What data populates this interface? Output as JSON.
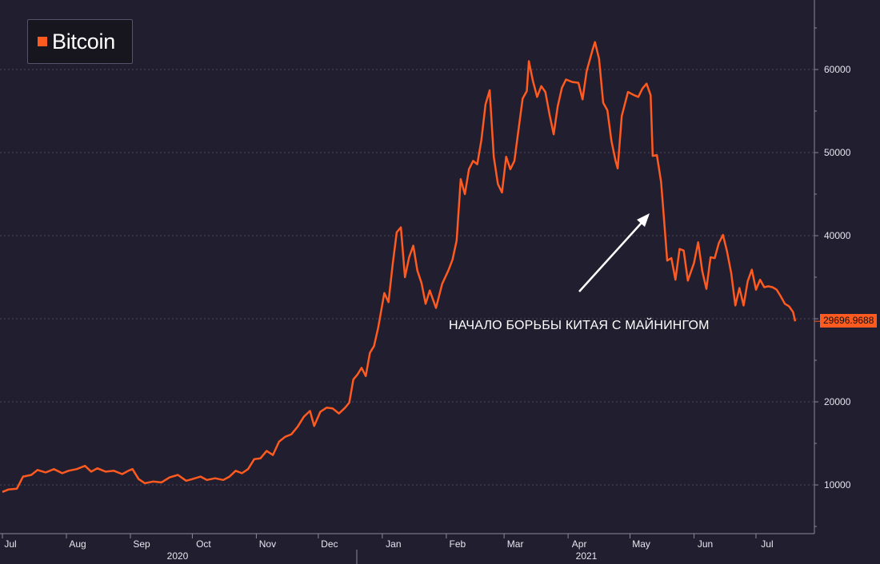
{
  "chart_data": {
    "type": "line",
    "legend": "Bitcoin",
    "series_color": "#ff5a1f",
    "background": "#201e2f",
    "grid": true,
    "legend_position": "top-left",
    "ylim": [
      3000,
      68000
    ],
    "y_ticks": [
      10000,
      20000,
      30000,
      40000,
      50000,
      60000
    ],
    "y_tick_labels": [
      "10000",
      "20000",
      "30000",
      "40000",
      "50000",
      "60000"
    ],
    "month_labels": [
      "Jul",
      "Aug",
      "Sep",
      "Oct",
      "Nov",
      "Dec",
      "Jan",
      "Feb",
      "Mar",
      "Apr",
      "May",
      "Jun",
      "Jul"
    ],
    "year_labels": [
      "2020",
      "2021"
    ],
    "last_value_label": "29696.9688",
    "annotation": "НАЧАЛО БОРЬБЫ КИТАЯ С МАЙНИНГОМ",
    "x_start": "2020-07-01",
    "x_end": "2021-07-20",
    "points": [
      [
        "2020-07-01",
        9150
      ],
      [
        "2020-07-04",
        9450
      ],
      [
        "2020-07-08",
        9550
      ],
      [
        "2020-07-11",
        11000
      ],
      [
        "2020-07-15",
        11200
      ],
      [
        "2020-07-18",
        11800
      ],
      [
        "2020-07-22",
        11500
      ],
      [
        "2020-07-26",
        11900
      ],
      [
        "2020-07-30",
        11400
      ],
      [
        "2020-08-02",
        11700
      ],
      [
        "2020-08-06",
        11900
      ],
      [
        "2020-08-10",
        12300
      ],
      [
        "2020-08-13",
        11600
      ],
      [
        "2020-08-16",
        12000
      ],
      [
        "2020-08-20",
        11600
      ],
      [
        "2020-08-24",
        11700
      ],
      [
        "2020-08-28",
        11300
      ],
      [
        "2020-08-31",
        11700
      ],
      [
        "2020-09-02",
        11900
      ],
      [
        "2020-09-05",
        10700
      ],
      [
        "2020-09-08",
        10200
      ],
      [
        "2020-09-12",
        10400
      ],
      [
        "2020-09-16",
        10300
      ],
      [
        "2020-09-20",
        10900
      ],
      [
        "2020-09-24",
        11200
      ],
      [
        "2020-09-28",
        10500
      ],
      [
        "2020-10-01",
        10700
      ],
      [
        "2020-10-05",
        11000
      ],
      [
        "2020-10-08",
        10600
      ],
      [
        "2020-10-12",
        10800
      ],
      [
        "2020-10-16",
        10600
      ],
      [
        "2020-10-19",
        11000
      ],
      [
        "2020-10-22",
        11700
      ],
      [
        "2020-10-25",
        11400
      ],
      [
        "2020-10-28",
        11900
      ],
      [
        "2020-10-31",
        13100
      ],
      [
        "2020-11-03",
        13200
      ],
      [
        "2020-11-06",
        14100
      ],
      [
        "2020-11-09",
        13600
      ],
      [
        "2020-11-12",
        15200
      ],
      [
        "2020-11-15",
        15800
      ],
      [
        "2020-11-18",
        16100
      ],
      [
        "2020-11-21",
        17000
      ],
      [
        "2020-11-24",
        18200
      ],
      [
        "2020-11-27",
        18900
      ],
      [
        "2020-11-29",
        17100
      ],
      [
        "2020-12-02",
        18800
      ],
      [
        "2020-12-05",
        19300
      ],
      [
        "2020-12-08",
        19200
      ],
      [
        "2020-12-11",
        18600
      ],
      [
        "2020-12-14",
        19300
      ],
      [
        "2020-12-16",
        19900
      ],
      [
        "2020-12-18",
        22700
      ],
      [
        "2020-12-20",
        23300
      ],
      [
        "2020-12-22",
        24100
      ],
      [
        "2020-12-24",
        23100
      ],
      [
        "2020-12-26",
        25900
      ],
      [
        "2020-12-28",
        26700
      ],
      [
        "2020-12-30",
        28900
      ],
      [
        "2021-01-02",
        33100
      ],
      [
        "2021-01-04",
        32000
      ],
      [
        "2021-01-06",
        36500
      ],
      [
        "2021-01-08",
        40400
      ],
      [
        "2021-01-10",
        41000
      ],
      [
        "2021-01-12",
        35000
      ],
      [
        "2021-01-14",
        37400
      ],
      [
        "2021-01-16",
        38800
      ],
      [
        "2021-01-18",
        35800
      ],
      [
        "2021-01-20",
        34300
      ],
      [
        "2021-01-22",
        31800
      ],
      [
        "2021-01-24",
        33400
      ],
      [
        "2021-01-27",
        31300
      ],
      [
        "2021-01-30",
        34200
      ],
      [
        "2021-02-02",
        35800
      ],
      [
        "2021-02-04",
        37100
      ],
      [
        "2021-02-06",
        39400
      ],
      [
        "2021-02-08",
        46800
      ],
      [
        "2021-02-10",
        45000
      ],
      [
        "2021-02-12",
        48000
      ],
      [
        "2021-02-14",
        49000
      ],
      [
        "2021-02-16",
        48600
      ],
      [
        "2021-02-18",
        51500
      ],
      [
        "2021-02-20",
        55800
      ],
      [
        "2021-02-22",
        57500
      ],
      [
        "2021-02-24",
        49500
      ],
      [
        "2021-02-26",
        46200
      ],
      [
        "2021-02-28",
        45200
      ],
      [
        "2021-03-02",
        49500
      ],
      [
        "2021-03-04",
        48000
      ],
      [
        "2021-03-06",
        49000
      ],
      [
        "2021-03-08",
        52800
      ],
      [
        "2021-03-10",
        56500
      ],
      [
        "2021-03-12",
        57400
      ],
      [
        "2021-03-13",
        61000
      ],
      [
        "2021-03-15",
        58600
      ],
      [
        "2021-03-17",
        56700
      ],
      [
        "2021-03-19",
        58000
      ],
      [
        "2021-03-21",
        57300
      ],
      [
        "2021-03-23",
        54600
      ],
      [
        "2021-03-25",
        52200
      ],
      [
        "2021-03-27",
        55600
      ],
      [
        "2021-03-29",
        57800
      ],
      [
        "2021-03-31",
        58800
      ],
      [
        "2021-04-03",
        58500
      ],
      [
        "2021-04-06",
        58400
      ],
      [
        "2021-04-08",
        56400
      ],
      [
        "2021-04-10",
        59800
      ],
      [
        "2021-04-13",
        62500
      ],
      [
        "2021-04-14",
        63300
      ],
      [
        "2021-04-16",
        61300
      ],
      [
        "2021-04-18",
        56000
      ],
      [
        "2021-04-20",
        55100
      ],
      [
        "2021-04-22",
        51400
      ],
      [
        "2021-04-24",
        49000
      ],
      [
        "2021-04-25",
        48100
      ],
      [
        "2021-04-27",
        54400
      ],
      [
        "2021-04-30",
        57300
      ],
      [
        "2021-05-03",
        56900
      ],
      [
        "2021-05-05",
        56700
      ],
      [
        "2021-05-07",
        57700
      ],
      [
        "2021-05-09",
        58300
      ],
      [
        "2021-05-11",
        56900
      ],
      [
        "2021-05-12",
        49600
      ],
      [
        "2021-05-14",
        49700
      ],
      [
        "2021-05-16",
        46500
      ],
      [
        "2021-05-17",
        43500
      ],
      [
        "2021-05-19",
        37000
      ],
      [
        "2021-05-21",
        37300
      ],
      [
        "2021-05-23",
        34700
      ],
      [
        "2021-05-25",
        38400
      ],
      [
        "2021-05-27",
        38200
      ],
      [
        "2021-05-29",
        34600
      ],
      [
        "2021-06-01",
        36700
      ],
      [
        "2021-06-03",
        39200
      ],
      [
        "2021-06-05",
        35700
      ],
      [
        "2021-06-07",
        33600
      ],
      [
        "2021-06-09",
        37400
      ],
      [
        "2021-06-11",
        37300
      ],
      [
        "2021-06-13",
        39100
      ],
      [
        "2021-06-15",
        40100
      ],
      [
        "2021-06-17",
        38100
      ],
      [
        "2021-06-19",
        35500
      ],
      [
        "2021-06-21",
        31600
      ],
      [
        "2021-06-23",
        33700
      ],
      [
        "2021-06-25",
        31600
      ],
      [
        "2021-06-27",
        34500
      ],
      [
        "2021-06-29",
        35900
      ],
      [
        "2021-07-01",
        33500
      ],
      [
        "2021-07-03",
        34700
      ],
      [
        "2021-07-05",
        33800
      ],
      [
        "2021-07-07",
        33900
      ],
      [
        "2021-07-09",
        33800
      ],
      [
        "2021-07-11",
        33500
      ],
      [
        "2021-07-13",
        32700
      ],
      [
        "2021-07-15",
        31800
      ],
      [
        "2021-07-17",
        31500
      ],
      [
        "2021-07-19",
        30800
      ],
      [
        "2021-07-20",
        29697
      ]
    ]
  }
}
